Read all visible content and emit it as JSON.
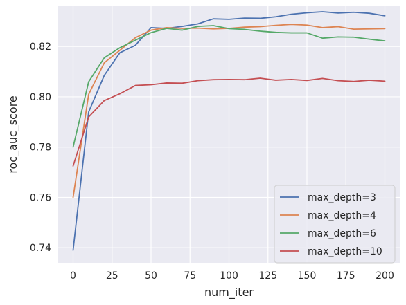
{
  "chart_data": {
    "type": "line",
    "xlabel": "num_iter",
    "ylabel": "roc_auc_score",
    "xlim": [
      -10,
      210
    ],
    "ylim": [
      0.734,
      0.836
    ],
    "xticks": [
      0,
      25,
      50,
      75,
      100,
      125,
      150,
      175,
      200
    ],
    "xtick_labels": [
      "0",
      "25",
      "50",
      "75",
      "100",
      "125",
      "150",
      "175",
      "200"
    ],
    "yticks": [
      0.74,
      0.76,
      0.78,
      0.8,
      0.82
    ],
    "ytick_labels": [
      "0.74",
      "0.76",
      "0.78",
      "0.80",
      "0.82"
    ],
    "grid": true,
    "legend_position": "lower-right",
    "x": [
      0,
      10,
      20,
      30,
      40,
      50,
      60,
      70,
      80,
      90,
      100,
      110,
      120,
      130,
      140,
      150,
      160,
      170,
      180,
      190,
      200
    ],
    "series": [
      {
        "name": "max_depth=3",
        "color": "#4c72b0",
        "values": [
          0.739,
          0.794,
          0.8085,
          0.8175,
          0.8205,
          0.8275,
          0.8272,
          0.828,
          0.829,
          0.831,
          0.8308,
          0.8313,
          0.8312,
          0.8318,
          0.8328,
          0.8334,
          0.8338,
          0.8333,
          0.8336,
          0.8332,
          0.8322
        ]
      },
      {
        "name": "max_depth=4",
        "color": "#dd8452",
        "values": [
          0.76,
          0.801,
          0.8135,
          0.8185,
          0.8235,
          0.8265,
          0.8275,
          0.8272,
          0.8273,
          0.827,
          0.8272,
          0.8277,
          0.8279,
          0.8284,
          0.8288,
          0.8285,
          0.8275,
          0.8279,
          0.8269,
          0.827,
          0.8271
        ]
      },
      {
        "name": "max_depth=6",
        "color": "#55a868",
        "values": [
          0.78,
          0.806,
          0.8155,
          0.8195,
          0.8225,
          0.8255,
          0.8272,
          0.8265,
          0.828,
          0.8283,
          0.8271,
          0.8268,
          0.8261,
          0.8256,
          0.8254,
          0.8254,
          0.8233,
          0.8238,
          0.8237,
          0.8229,
          0.8222
        ]
      },
      {
        "name": "max_depth=10",
        "color": "#c44e52",
        "values": [
          0.7725,
          0.792,
          0.7985,
          0.8012,
          0.8045,
          0.8048,
          0.8055,
          0.8054,
          0.8064,
          0.8068,
          0.8069,
          0.8068,
          0.8074,
          0.8066,
          0.8069,
          0.8065,
          0.8073,
          0.8064,
          0.8061,
          0.8066,
          0.8062
        ]
      }
    ]
  }
}
